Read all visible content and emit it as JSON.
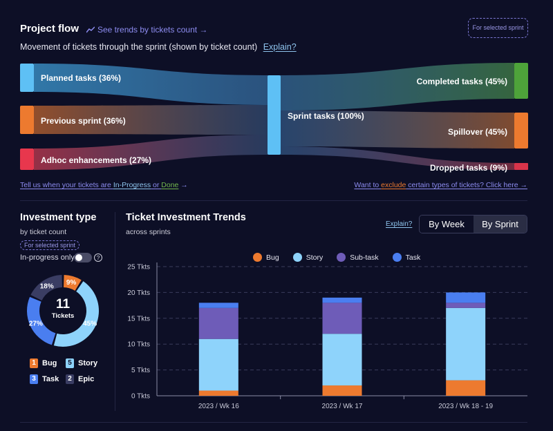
{
  "project_flow": {
    "title": "Project flow",
    "trends_link": "See trends by tickets count →",
    "selected_sprint_badge": "For selected sprint",
    "subtitle": "Movement of tickets through the sprint (shown by ticket count)",
    "explain_link": "Explain?",
    "nodes": {
      "planned": "Planned tasks (36%)",
      "previous": "Previous sprint (36%)",
      "adhoc": "Adhoc enhancements (27%)",
      "sprint": "Sprint tasks (100%)",
      "completed": "Completed tasks (45%)",
      "spillover": "Spillover (45%)",
      "dropped": "Dropped tasks (9%)"
    },
    "colors": {
      "planned": "#5ec0f5",
      "previous": "#ed7a2f",
      "adhoc": "#e8374d",
      "sprint": "#5ec0f5",
      "completed": "#4ea33a",
      "spillover": "#ed7a2f",
      "dropped": "#d8344a"
    },
    "left_footer": {
      "prefix": "Tell us when your tickets are ",
      "in_progress": "In-Progress",
      "or": " or ",
      "done": "Done",
      "arrow": " →"
    },
    "right_footer": {
      "prefix": "Want to ",
      "exclude": "exclude",
      "suffix": " certain types of tickets? Click here →"
    }
  },
  "investment_type": {
    "title": "Investment type",
    "subtitle": "by ticket count",
    "badge": "For selected sprint",
    "toggle_label": "In-progress only",
    "help_icon": "?",
    "total": "11",
    "total_label": "Tickets",
    "slices": [
      {
        "name": "Bug",
        "percent_label": "9%",
        "value": 9,
        "color": "#ed7a2f"
      },
      {
        "name": "Story",
        "percent_label": "45%",
        "value": 45,
        "color": "#8ed3fb"
      },
      {
        "name": "Task",
        "percent_label": "27%",
        "value": 27,
        "color": "#4a7ef0"
      },
      {
        "name": "Epic",
        "percent_label": "18%",
        "value": 18,
        "color": "#3a3d63"
      }
    ],
    "legend": [
      {
        "count": "1",
        "label": "Bug",
        "color": "#ed7a2f"
      },
      {
        "count": "5",
        "label": "Story",
        "color": "#8ed3fb"
      },
      {
        "count": "3",
        "label": "Task",
        "color": "#4a7ef0"
      },
      {
        "count": "2",
        "label": "Epic",
        "color": "#3a3d63"
      }
    ]
  },
  "trends": {
    "title": "Ticket Investment Trends",
    "subtitle": "across sprints",
    "explain_link": "Explain?",
    "by_week": "By Week",
    "by_sprint": "By Sprint"
  },
  "chart_data": {
    "type": "bar",
    "stacked": true,
    "title": "Ticket Investment Trends",
    "categories": [
      "2023 / Wk 16",
      "2023 / Wk 17",
      "2023 / Wk 18 - 19"
    ],
    "series": [
      {
        "name": "Bug",
        "color": "#ed7a2f",
        "values": [
          1,
          2,
          3
        ]
      },
      {
        "name": "Story",
        "color": "#8ed3fb",
        "values": [
          10,
          10,
          14
        ]
      },
      {
        "name": "Sub-task",
        "color": "#6e5cb8",
        "values": [
          6,
          6,
          1
        ]
      },
      {
        "name": "Task",
        "color": "#4a7ef0",
        "values": [
          1,
          1,
          2
        ]
      }
    ],
    "ylim": [
      0,
      25
    ],
    "yticks": [
      0,
      5,
      10,
      15,
      20,
      25
    ],
    "ytick_labels": [
      "0 Tkts",
      "5 Tkts",
      "10 Tkts",
      "15 Tkts",
      "20 Tkts",
      "25 Tkts"
    ],
    "xlabel": "",
    "ylabel": "",
    "legend_position": "top"
  }
}
